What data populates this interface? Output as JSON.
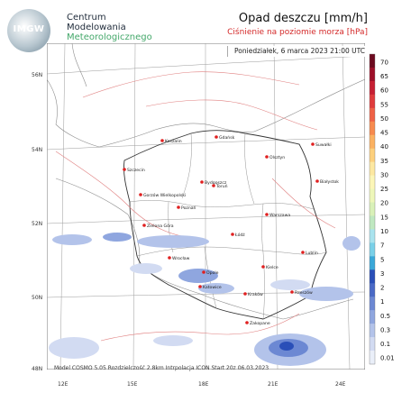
{
  "header": {
    "logo_text": "IMGW",
    "org_line1": "Centrum",
    "org_line2": "Modelowania",
    "org_line3": "Meteorologicznego",
    "title": "Opad deszczu [mm/h]",
    "subtitle": "Ciśnienie na poziomie morza [hPa]",
    "datetime": "Poniedziałek, 6 marca 2023 21:00 UTC"
  },
  "axes": {
    "lat_labels": [
      "56N",
      "54N",
      "52N",
      "50N",
      "48N"
    ],
    "lon_labels": [
      "12E",
      "15E",
      "18E",
      "21E",
      "24E"
    ]
  },
  "cities": [
    {
      "name": "Gdańsk"
    },
    {
      "name": "Koszalin"
    },
    {
      "name": "Suwałki"
    },
    {
      "name": "Olsztyn"
    },
    {
      "name": "Szczecin"
    },
    {
      "name": "Bydgoszcz"
    },
    {
      "name": "Toruń"
    },
    {
      "name": "Białystok"
    },
    {
      "name": "Gorzów Wielkopolski"
    },
    {
      "name": "Poznań"
    },
    {
      "name": "Warszawa"
    },
    {
      "name": "Zielona Góra"
    },
    {
      "name": "Łódź"
    },
    {
      "name": "Lublin"
    },
    {
      "name": "Wrocław"
    },
    {
      "name": "Kielce"
    },
    {
      "name": "Opole"
    },
    {
      "name": "Katowice"
    },
    {
      "name": "Kraków"
    },
    {
      "name": "Rzeszów"
    },
    {
      "name": "Zakopane"
    }
  ],
  "legend": {
    "colors": [
      "#eaeff9",
      "#d2dbf2",
      "#b3c3ea",
      "#8fa6df",
      "#6c88d3",
      "#4a69c6",
      "#2a4fb8",
      "#3aa7d8",
      "#7ad0e8",
      "#a9e3ee",
      "#bfe8c0",
      "#d9f1b8",
      "#eef7b9",
      "#fcf6b7",
      "#fde8a1",
      "#fdd07d",
      "#fbb161",
      "#f78a4e",
      "#ef6146",
      "#df3b3c",
      "#c61f33",
      "#9d0f28",
      "#6d0a1f"
    ],
    "labels": [
      "70",
      "65",
      "60",
      "55",
      "50",
      "45",
      "40",
      "35",
      "30",
      "25",
      "20",
      "15",
      "10",
      "7",
      "5",
      "3",
      "2",
      "1",
      "0.5",
      "0.3",
      "0.1",
      "0.01"
    ]
  },
  "model_info": "Model COSMO 5.05  Rozdzielczość 2.8km  Intrpolacja ICON  Start 20z 06.03.2023"
}
